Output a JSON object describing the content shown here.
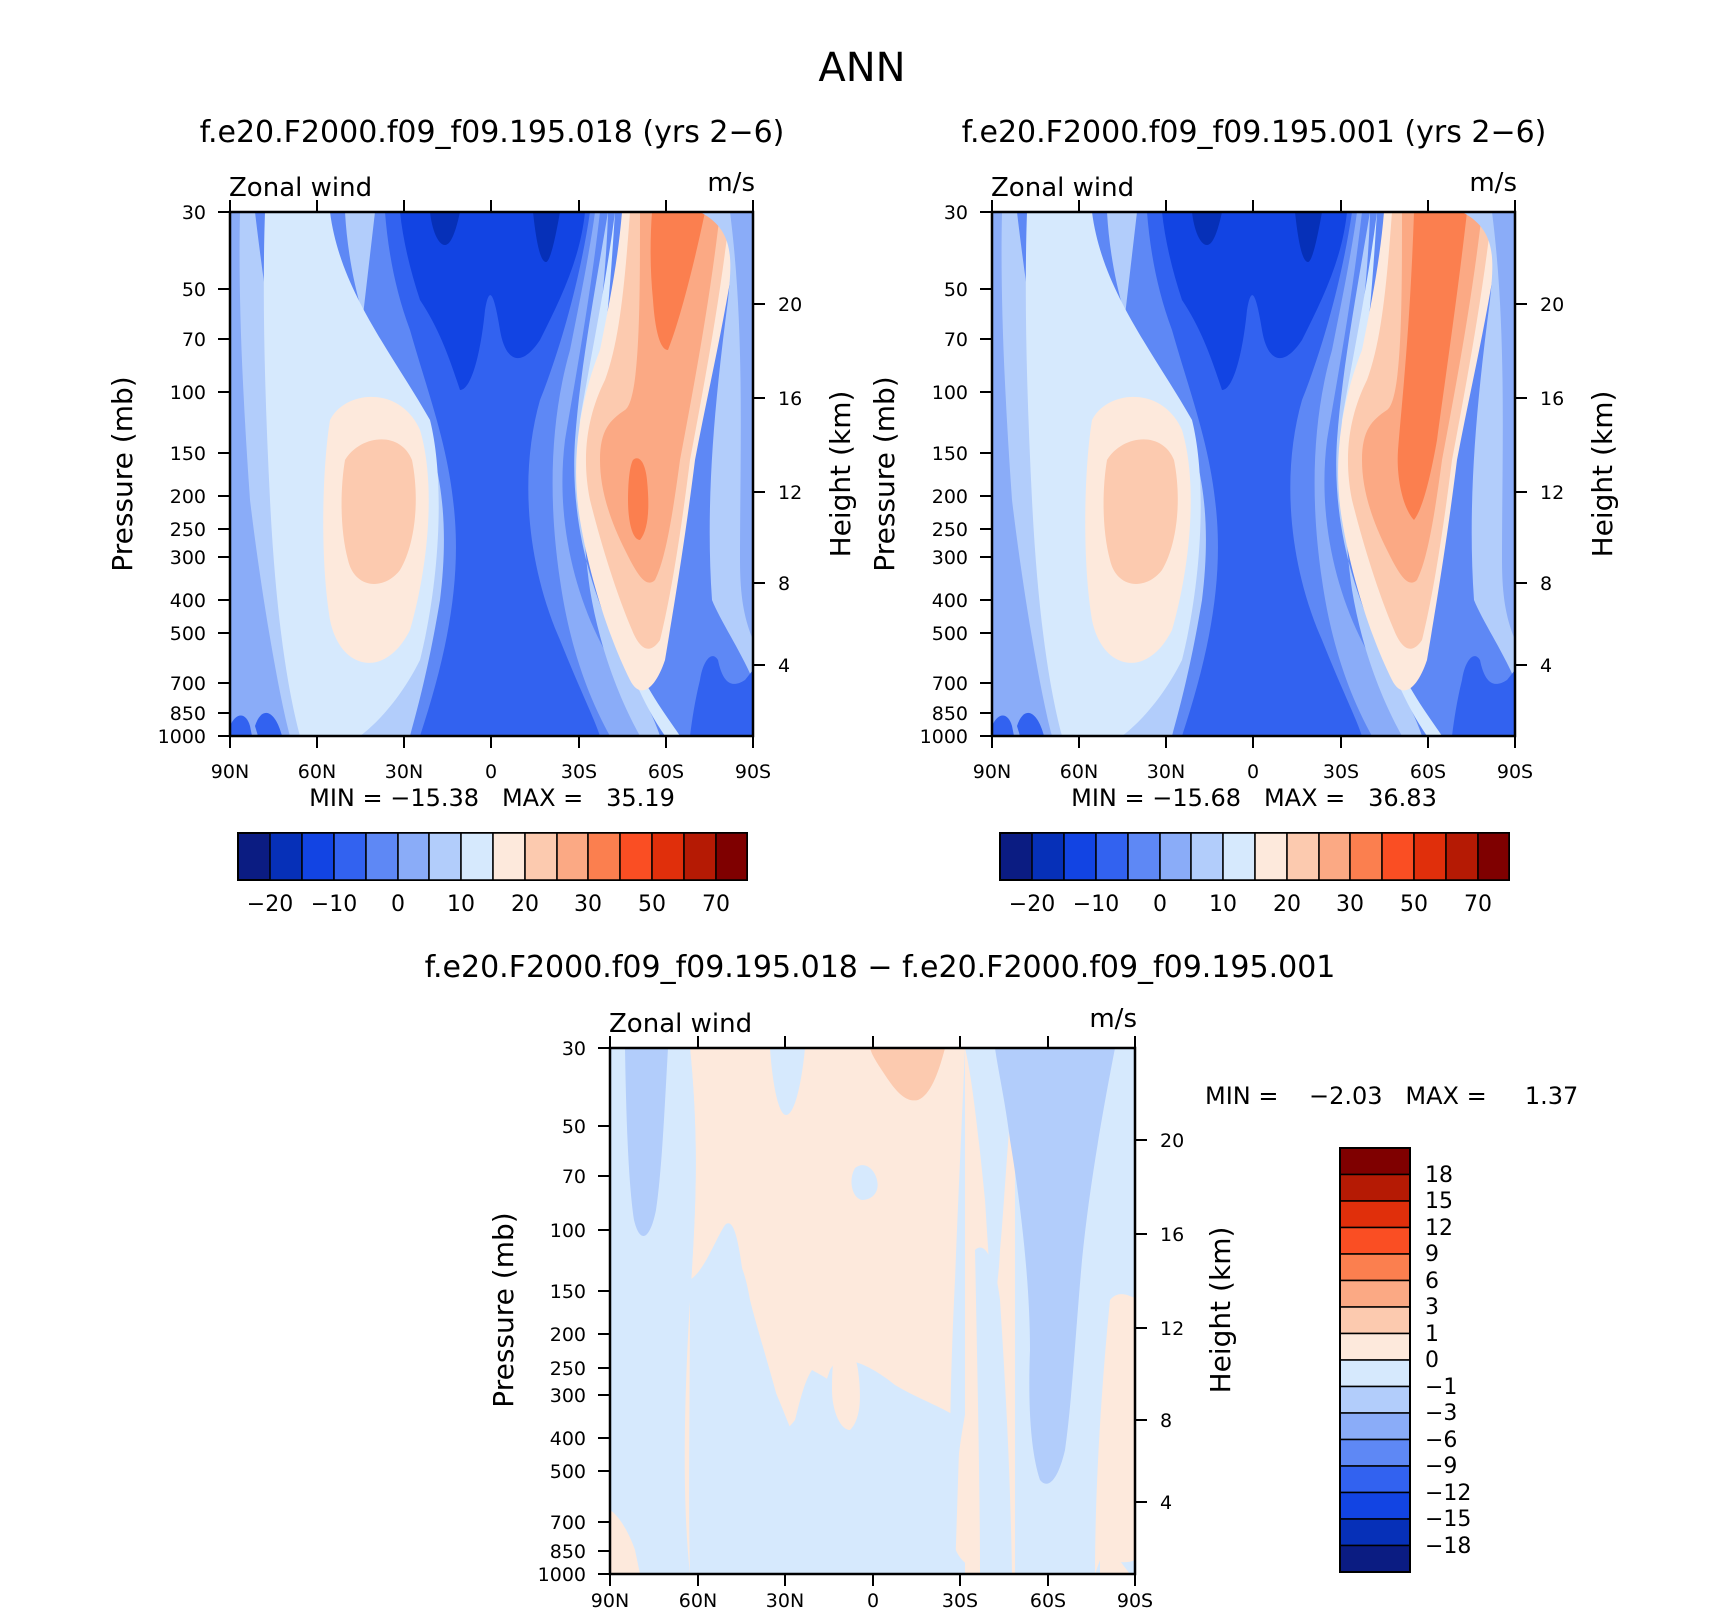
{
  "figure_title": "ANN",
  "colors": {
    "red_scale": [
      "#fde9dc",
      "#fccaaf",
      "#fba984",
      "#fb7f4f",
      "#fa4e23",
      "#e02f0b",
      "#b51a04",
      "#7f0000"
    ],
    "blue_scale": [
      "#d6e9fd",
      "#b2cdfb",
      "#8aacf8",
      "#5e88f5",
      "#3262f0",
      "#1244e3",
      "#0630b8",
      "#0b1c82"
    ]
  },
  "chart_data": [
    {
      "type": "contour",
      "title": "f.e20.F2000.f09_f09.195.018 (yrs 2−6)",
      "left_label": "Zonal wind",
      "right_label": "m/s",
      "ylabel": "Pressure (mb)",
      "ylabel_right": "Height (km)",
      "x_ticklabels": [
        "90N",
        "60N",
        "30N",
        "0",
        "30S",
        "60S",
        "90S"
      ],
      "y_ticklabels": [
        "30",
        "50",
        "70",
        "100",
        "150",
        "200",
        "250",
        "300",
        "400",
        "500",
        "700",
        "850",
        "1000"
      ],
      "y_ticks_mb": [
        30,
        50,
        70,
        100,
        150,
        200,
        250,
        300,
        400,
        500,
        700,
        850,
        1000
      ],
      "height_ticklabels": [
        "20",
        "16",
        "12",
        "8",
        "4"
      ],
      "min_max_text": "MIN = −15.38   MAX =   35.19",
      "min": -15.38,
      "max": 35.19,
      "colorbar_labels": [
        "−20",
        "−10",
        "0",
        "10",
        "20",
        "30",
        "50",
        "70"
      ],
      "max_scale": 1.0
    },
    {
      "type": "contour",
      "title": "f.e20.F2000.f09_f09.195.001 (yrs 2−6)",
      "left_label": "Zonal wind",
      "right_label": "m/s",
      "ylabel": "Pressure (mb)",
      "ylabel_right": "Height (km)",
      "x_ticklabels": [
        "90N",
        "60N",
        "30N",
        "0",
        "30S",
        "60S",
        "90S"
      ],
      "y_ticklabels": [
        "30",
        "50",
        "70",
        "100",
        "150",
        "200",
        "250",
        "300",
        "400",
        "500",
        "700",
        "850",
        "1000"
      ],
      "y_ticks_mb": [
        30,
        50,
        70,
        100,
        150,
        200,
        250,
        300,
        400,
        500,
        700,
        850,
        1000
      ],
      "height_ticklabels": [
        "20",
        "16",
        "12",
        "8",
        "4"
      ],
      "min_max_text": "MIN = −15.68   MAX =   36.83",
      "min": -15.68,
      "max": 36.83,
      "colorbar_labels": [
        "−20",
        "−10",
        "0",
        "10",
        "20",
        "30",
        "50",
        "70"
      ],
      "max_scale": 1.05
    },
    {
      "type": "contour",
      "title": "f.e20.F2000.f09_f09.195.018 − f.e20.F2000.f09_f09.195.001",
      "left_label": "Zonal wind",
      "right_label": "m/s",
      "ylabel": "Pressure (mb)",
      "ylabel_right": "Height (km)",
      "x_ticklabels": [
        "90N",
        "60N",
        "30N",
        "0",
        "30S",
        "60S",
        "90S"
      ],
      "y_ticklabels": [
        "30",
        "50",
        "70",
        "100",
        "150",
        "200",
        "250",
        "300",
        "400",
        "500",
        "700",
        "850",
        "1000"
      ],
      "y_ticks_mb": [
        30,
        50,
        70,
        100,
        150,
        200,
        250,
        300,
        400,
        500,
        700,
        850,
        1000
      ],
      "height_ticklabels": [
        "20",
        "16",
        "12",
        "8",
        "4"
      ],
      "min_max_text": "MIN =    −2.03   MAX =     1.37",
      "min": -2.03,
      "max": 1.37,
      "colorbar_labels": [
        "18",
        "15",
        "12",
        "9",
        "6",
        "3",
        "1",
        "0",
        "−1",
        "−3",
        "−6",
        "−9",
        "−12",
        "−15",
        "−18"
      ]
    }
  ]
}
